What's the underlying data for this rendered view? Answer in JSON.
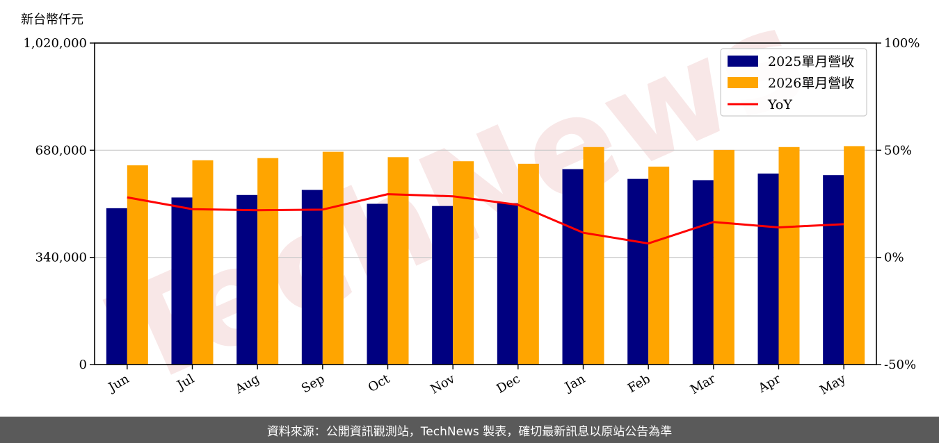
{
  "chart_data": {
    "type": "bar",
    "unit_label": "新台幣仟元",
    "categories": [
      "Jun",
      "Jul",
      "Aug",
      "Sep",
      "Oct",
      "Nov",
      "Dec",
      "Jan",
      "Feb",
      "Mar",
      "Apr",
      "May"
    ],
    "series": [
      {
        "name": "2025單月營收",
        "color": "#000080",
        "values": [
          496000,
          530000,
          538000,
          554000,
          510000,
          503000,
          512000,
          620000,
          589000,
          585000,
          606000,
          601000
        ]
      },
      {
        "name": "2026單月營收",
        "color": "#FFA500",
        "values": [
          632000,
          648000,
          655000,
          675000,
          658000,
          645000,
          637000,
          690000,
          628000,
          681000,
          690000,
          693000
        ]
      }
    ],
    "line_series": {
      "name": "YoY",
      "color": "#FF0000",
      "values": [
        28,
        22.5,
        22,
        22.3,
        29.5,
        28.5,
        24.5,
        11.5,
        6.5,
        16.5,
        14,
        15.5
      ]
    },
    "ylim": [
      0,
      1020000
    ],
    "y_ticks": [
      0,
      340000,
      680000,
      1020000
    ],
    "y_tick_labels": [
      "0",
      "340,000",
      "680,000",
      "1,020,000"
    ],
    "y2lim": [
      -50,
      100
    ],
    "y2_ticks": [
      -50,
      0,
      50,
      100
    ],
    "y2_tick_labels": [
      "-50%",
      "0%",
      "50%",
      "100%"
    ],
    "grid": true,
    "legend_position": "top-right",
    "watermark": "TechNews"
  },
  "footer": {
    "text": "資料來源：公開資訊觀測站，TechNews 製表，確切最新訊息以原站公告為準"
  }
}
